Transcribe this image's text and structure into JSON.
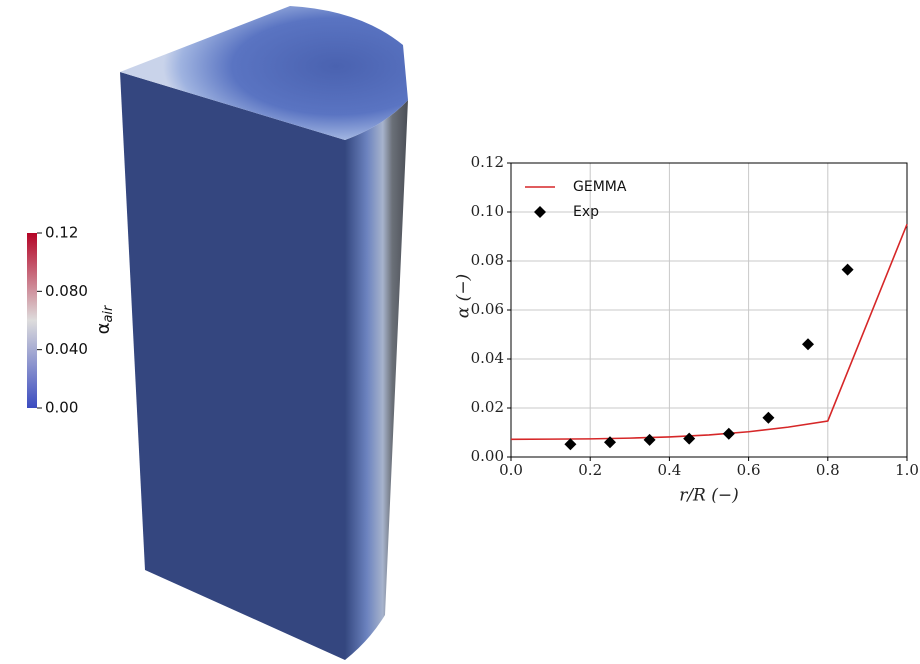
{
  "colorbar": {
    "label": "α",
    "label_sub": "air",
    "lim": [
      0,
      0.12
    ],
    "colors": [
      "#3b4cc0",
      "#dddcdc",
      "#b40426"
    ],
    "ticks": [
      {
        "value": 0,
        "label": "0.00"
      },
      {
        "value": 0.04,
        "label": "0.040"
      },
      {
        "value": 0.08,
        "label": "0.080"
      },
      0.12
    ]
  },
  "chart_data": {
    "type": "line",
    "xlabel": "r/R (−)",
    "ylabel": "α (−)",
    "xlim": [
      0,
      1
    ],
    "ylim": [
      0,
      0.12
    ],
    "xticks": [
      {
        "value": 0,
        "label": "0.0"
      },
      0.2,
      0.4,
      0.6,
      0.8,
      {
        "value": 1,
        "label": "1.0"
      }
    ],
    "yticks": [
      {
        "value": 0,
        "label": "0.00"
      },
      0.02,
      0.04,
      0.06,
      0.08,
      {
        "value": 0.1,
        "label": "0.10"
      },
      0.12
    ],
    "grid": true,
    "legend": "upper left",
    "series": [
      {
        "name": "GEMMA",
        "type": "line",
        "color": "#d62728",
        "x": [
          0,
          0.1,
          0.2,
          0.3,
          0.4,
          0.5,
          0.6,
          0.7,
          0.8,
          1
        ],
        "values": [
          0.0072,
          0.0073,
          0.0074,
          0.0077,
          0.0082,
          0.009,
          0.0103,
          0.0122,
          0.0147,
          0.095
        ]
      },
      {
        "name": "Exp",
        "type": "scatter",
        "marker": "diamond",
        "color": "#000000",
        "x": [
          0.15,
          0.25,
          0.35,
          0.45,
          0.55,
          0.65,
          0.75,
          0.85
        ],
        "values": [
          0.0052,
          0.006,
          0.007,
          0.0075,
          0.0095,
          0.016,
          0.046,
          0.0765
        ]
      }
    ]
  }
}
